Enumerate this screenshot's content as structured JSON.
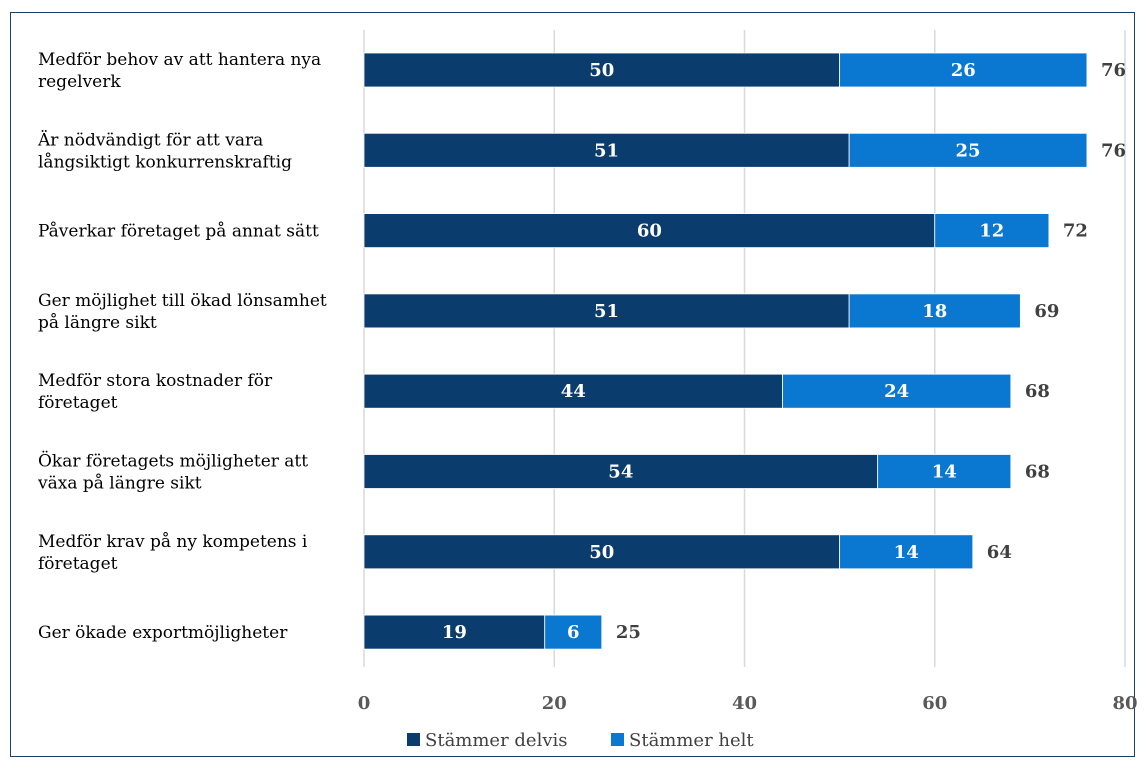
{
  "chart_data": {
    "type": "bar",
    "orientation": "horizontal",
    "stacked": true,
    "categories": [
      [
        "Medför behov av att hantera nya",
        "regelverk"
      ],
      [
        "Är nödvändigt för att vara",
        "långsiktigt konkurrenskraftig"
      ],
      [
        "Påverkar företaget på annat sätt"
      ],
      [
        "Ger möjlighet till ökad lönsamhet",
        "på längre sikt"
      ],
      [
        "Medför stora kostnader för",
        "företaget"
      ],
      [
        "Ökar företagets möjligheter att",
        "växa på längre sikt"
      ],
      [
        "Medför krav på ny kompetens i",
        "företaget"
      ],
      [
        "Ger ökade exportmöjligheter"
      ]
    ],
    "series": [
      {
        "name": "Stämmer delvis",
        "color": "#0b3c6e",
        "values": [
          50,
          51,
          60,
          51,
          44,
          54,
          50,
          19
        ]
      },
      {
        "name": "Stämmer helt",
        "color": "#0a78d1",
        "values": [
          26,
          25,
          12,
          18,
          24,
          14,
          14,
          6
        ]
      }
    ],
    "totals": [
      76,
      76,
      72,
      69,
      68,
      68,
      64,
      25
    ],
    "xlim": [
      0,
      80
    ],
    "xticks": [
      0,
      20,
      40,
      60,
      80
    ],
    "grid": true,
    "legend": "bottom"
  }
}
